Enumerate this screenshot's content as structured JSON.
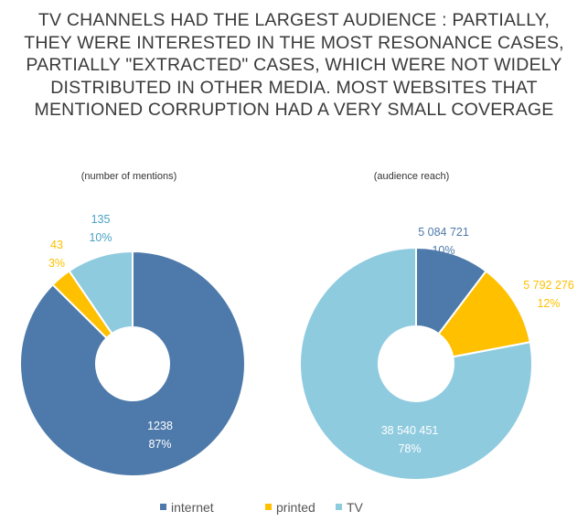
{
  "title_lines": [
    "TV CHANNELS HAD THE LARGEST AUDIENCE : PARTIALLY,",
    "THEY WERE INTERESTED  IN THE MOST RESONANCE CASES,",
    "PARTIALLY \"EXTRACTED\"  CASES, WHICH WERE NOT WIDELY",
    "DISTRIBUTED  IN OTHER MEDIA. MOST WEBSITES THAT",
    "MENTIONED  CORRUPTION HAD A VERY SMALL COVERAGE"
  ],
  "colors": {
    "internet": "#4e7aab",
    "printed": "#ffc000",
    "TV": "#8fcbdf",
    "title": "#3a3a3a"
  },
  "legend": [
    "internet",
    "printed",
    "TV"
  ],
  "chart_data": [
    {
      "type": "pie",
      "subtitle": "(number of mentions)",
      "categories": [
        "internet",
        "printed",
        "TV"
      ],
      "values": [
        1238,
        43,
        135
      ],
      "value_labels": [
        "1238",
        "43",
        "135"
      ],
      "percent_labels": [
        "87%",
        "3%",
        "10%"
      ]
    },
    {
      "type": "pie",
      "subtitle": "(audience reach)",
      "categories": [
        "internet",
        "printed",
        "TV"
      ],
      "values": [
        5084721,
        5792276,
        38540451
      ],
      "value_labels": [
        "5 084 721",
        "5 792 276",
        "38 540 451"
      ],
      "percent_labels": [
        "10%",
        "12%",
        "78%"
      ]
    }
  ]
}
